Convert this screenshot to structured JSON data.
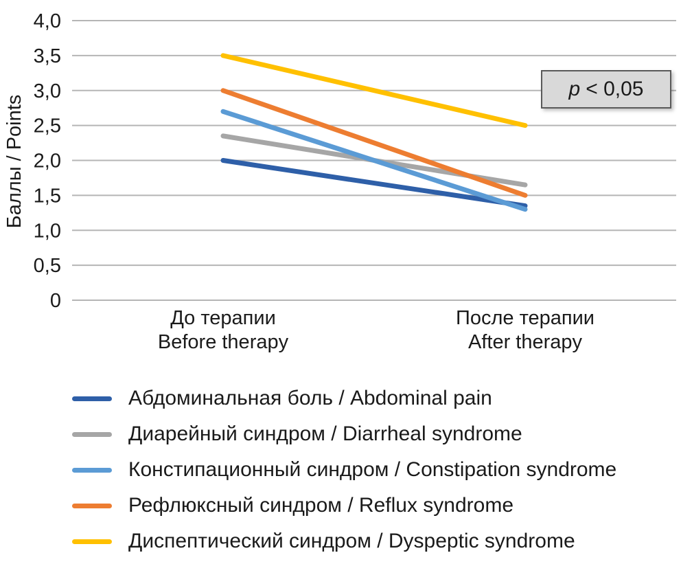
{
  "chart_data": {
    "type": "line",
    "title": "",
    "xlabel": "",
    "ylabel": "Баллы / Points",
    "ylim": [
      0,
      4
    ],
    "ytick_step": 0.5,
    "ytick_labels": [
      "0",
      "0,5",
      "1,0",
      "1,5",
      "2,0",
      "2,5",
      "3,0",
      "3,5",
      "4,0"
    ],
    "grid": true,
    "legend_position": "bottom",
    "categories": [
      {
        "ru": "До терапии",
        "en": "Before therapy"
      },
      {
        "ru": "После терапии",
        "en": "After therapy"
      }
    ],
    "series": [
      {
        "name": "Абдоминальная боль / Abdominal pain",
        "color": "#2e5fa8",
        "values": [
          2.0,
          1.35
        ]
      },
      {
        "name": "Диарейный синдром / Diarrheal syndrome",
        "color": "#a6a6a6",
        "values": [
          2.35,
          1.65
        ]
      },
      {
        "name": "Констипационный синдром / Constipation syndrome",
        "color": "#5b9bd5",
        "values": [
          2.7,
          1.3
        ]
      },
      {
        "name": "Рефлюксный синдром / Reflux syndrome",
        "color": "#ed7d31",
        "values": [
          3.0,
          1.5
        ]
      },
      {
        "name": "Диспептический синдром / Dyspeptic syndrome",
        "color": "#ffc000",
        "values": [
          3.5,
          2.5
        ]
      }
    ],
    "annotation": {
      "p_symbol": "p",
      "p_text": "< 0,05"
    }
  }
}
